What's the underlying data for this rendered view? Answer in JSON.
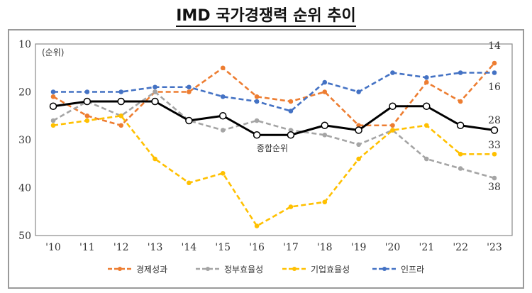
{
  "chart_data": {
    "type": "line",
    "title": "IMD 국가경쟁력 순위 추이",
    "ylabel": "(순위)",
    "xlabel": "",
    "ylim": [
      10,
      50
    ],
    "y_inverted": true,
    "y_ticks": [
      "10",
      "20",
      "30",
      "40",
      "50"
    ],
    "categories": [
      "'10",
      "'11",
      "'12",
      "'13",
      "'14",
      "'15",
      "'16",
      "'17",
      "'18",
      "'19",
      "'20",
      "'21",
      "'22",
      "'23"
    ],
    "legend_position": "bottom",
    "grid": false,
    "series": [
      {
        "name": "경제성과",
        "color": "#ED7D31",
        "style": "dashed",
        "values": [
          21,
          25,
          27,
          20,
          20,
          15,
          21,
          22,
          20,
          27,
          27,
          18,
          22,
          14
        ]
      },
      {
        "name": "정부효율성",
        "color": "#A5A5A5",
        "style": "dashed",
        "values": [
          26,
          22,
          25,
          20,
          26,
          28,
          26,
          28,
          29,
          31,
          28,
          34,
          36,
          38
        ]
      },
      {
        "name": "기업효율성",
        "color": "#FFC000",
        "style": "dashed",
        "values": [
          27,
          26,
          25,
          34,
          39,
          37,
          48,
          44,
          43,
          34,
          28,
          27,
          33,
          33
        ]
      },
      {
        "name": "인프라",
        "color": "#4472C4",
        "style": "dashed",
        "values": [
          20,
          20,
          20,
          19,
          19,
          21,
          22,
          24,
          18,
          20,
          16,
          17,
          16,
          16
        ]
      },
      {
        "name": "종합순위",
        "color": "#000000",
        "style": "solid",
        "values": [
          23,
          22,
          22,
          22,
          26,
          25,
          29,
          29,
          27,
          28,
          23,
          23,
          27,
          28
        ]
      }
    ],
    "annotations": {
      "overall_label": "종합순위",
      "end_labels": [
        "14",
        "16",
        "28",
        "33",
        "38"
      ]
    }
  }
}
